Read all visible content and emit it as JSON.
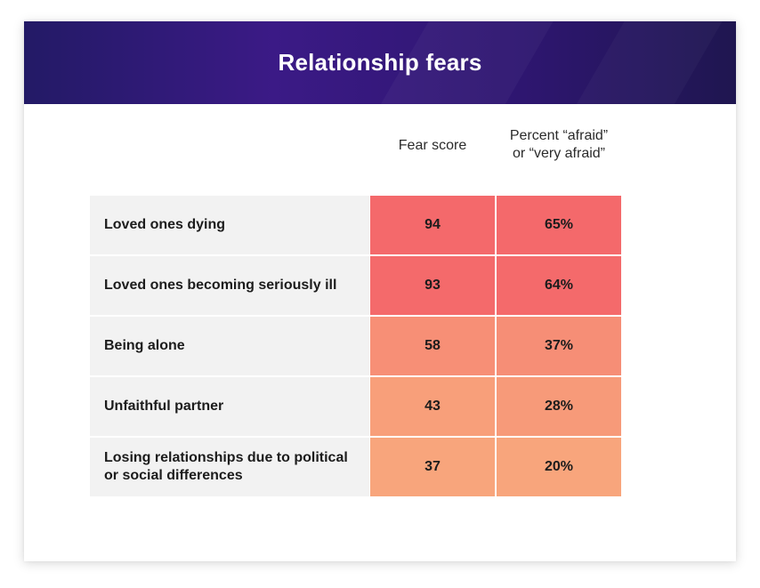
{
  "title": "Relationship fears",
  "colors": {
    "banner_start": "#231a66",
    "banner_end": "#1f1650",
    "label_bg": "#f2f2f2",
    "heat_high": "#f4696b",
    "heat_low": "#f8a57c"
  },
  "chart_data": {
    "type": "table",
    "title": "Relationship fears",
    "columns": [
      "Fear score",
      "Percent “afraid” or “very afraid”"
    ],
    "column_lines": [
      [
        "Fear score"
      ],
      [
        "Percent “afraid”",
        "or “very afraid”"
      ]
    ],
    "rows": [
      {
        "label": "Loved ones dying",
        "label_lines": [
          "Loved ones dying"
        ],
        "fear_score": 94,
        "percent": "65%"
      },
      {
        "label": "Loved ones becoming seriously ill",
        "label_lines": [
          "Loved ones becoming seriously ill"
        ],
        "fear_score": 93,
        "percent": "64%"
      },
      {
        "label": "Being alone",
        "label_lines": [
          "Being alone"
        ],
        "fear_score": 58,
        "percent": "37%"
      },
      {
        "label": "Unfaithful partner",
        "label_lines": [
          "Unfaithful partner"
        ],
        "fear_score": 43,
        "percent": "28%"
      },
      {
        "label": "Losing relationships due to political or social differences",
        "label_lines": [
          "Losing relationships due to political",
          "or social differences"
        ],
        "fear_score": 37,
        "percent": "20%"
      }
    ]
  }
}
